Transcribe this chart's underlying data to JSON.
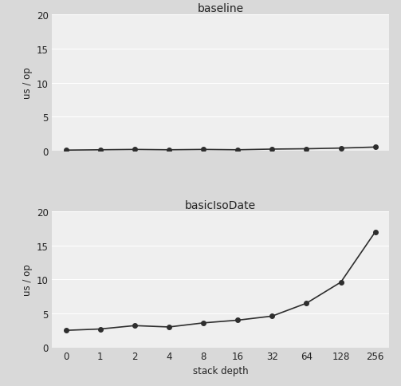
{
  "x_labels": [
    "0",
    "1",
    "2",
    "4",
    "8",
    "16",
    "32",
    "64",
    "128",
    "256"
  ],
  "x_values": [
    0,
    1,
    2,
    3,
    4,
    5,
    6,
    7,
    8,
    9
  ],
  "baseline_y": [
    0.05,
    0.1,
    0.15,
    0.1,
    0.15,
    0.1,
    0.2,
    0.25,
    0.35,
    0.5
  ],
  "basicIsoDate_y": [
    2.5,
    2.7,
    3.2,
    3.0,
    3.6,
    4.0,
    4.6,
    6.5,
    9.6,
    17.0
  ],
  "title_top": "baseline",
  "title_bottom": "basicIsoDate",
  "xlabel": "stack depth",
  "ylabel": "us / op",
  "ylim": [
    0,
    20
  ],
  "yticks": [
    0,
    5,
    10,
    15,
    20
  ],
  "line_color": "#2e2e2e",
  "marker": "o",
  "markersize": 4,
  "bg_color": "#d9d9d9",
  "plot_bg_color": "#efefef",
  "grid_color": "#ffffff",
  "font_color": "#222222",
  "title_fontsize": 10,
  "label_fontsize": 8.5,
  "tick_fontsize": 8.5
}
